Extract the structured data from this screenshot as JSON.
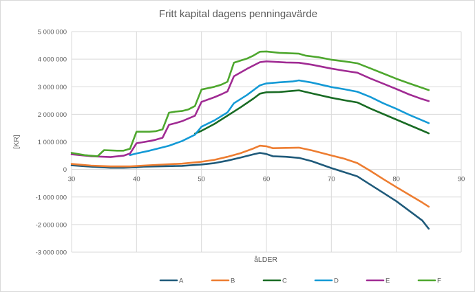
{
  "chart_data": {
    "type": "line",
    "title": "Fritt kapital dagens penningavärde",
    "xlabel": "åLDER",
    "ylabel": "[KR]",
    "xlim": [
      30,
      90
    ],
    "ylim": [
      -3000000,
      5000000
    ],
    "x_ticks": [
      30,
      40,
      50,
      60,
      70,
      80,
      90
    ],
    "x_tick_labels": [
      "30",
      "40",
      "50",
      "60",
      "70",
      "80",
      "90"
    ],
    "y_ticks": [
      -3000000,
      -2000000,
      -1000000,
      0,
      1000000,
      2000000,
      3000000,
      4000000,
      5000000
    ],
    "y_tick_labels": [
      "-3 000 000",
      "-2 000 000",
      "-1 000 000",
      "0",
      "1 000 000",
      "2 000 000",
      "3 000 000",
      "4 000 000",
      "5 000 000"
    ],
    "grid": "vertical and horizontal",
    "legend_position": "bottom",
    "series": [
      {
        "name": "A",
        "color": "#1f5a7a",
        "points": [
          [
            30,
            150000
          ],
          [
            33,
            100000
          ],
          [
            36,
            60000
          ],
          [
            38,
            60000
          ],
          [
            40,
            80000
          ],
          [
            41,
            100000
          ],
          [
            43,
            110000
          ],
          [
            45,
            120000
          ],
          [
            47,
            130000
          ],
          [
            50,
            180000
          ],
          [
            52,
            230000
          ],
          [
            54,
            320000
          ],
          [
            56,
            430000
          ],
          [
            58,
            550000
          ],
          [
            59,
            600000
          ],
          [
            60,
            560000
          ],
          [
            61,
            480000
          ],
          [
            63,
            460000
          ],
          [
            65,
            420000
          ],
          [
            67,
            300000
          ],
          [
            70,
            50000
          ],
          [
            72,
            -100000
          ],
          [
            74,
            -250000
          ],
          [
            76,
            -550000
          ],
          [
            78,
            -850000
          ],
          [
            80,
            -1150000
          ],
          [
            82,
            -1500000
          ],
          [
            84,
            -1850000
          ],
          [
            85,
            -2150000
          ]
        ]
      },
      {
        "name": "B",
        "color": "#ed7d31",
        "points": [
          [
            30,
            200000
          ],
          [
            33,
            140000
          ],
          [
            36,
            110000
          ],
          [
            39,
            110000
          ],
          [
            41,
            140000
          ],
          [
            45,
            190000
          ],
          [
            47,
            210000
          ],
          [
            50,
            280000
          ],
          [
            52,
            350000
          ],
          [
            54,
            460000
          ],
          [
            56,
            590000
          ],
          [
            58,
            760000
          ],
          [
            59,
            860000
          ],
          [
            60,
            840000
          ],
          [
            61,
            770000
          ],
          [
            63,
            780000
          ],
          [
            65,
            790000
          ],
          [
            67,
            690000
          ],
          [
            70,
            510000
          ],
          [
            72,
            390000
          ],
          [
            74,
            230000
          ],
          [
            76,
            -50000
          ],
          [
            78,
            -350000
          ],
          [
            80,
            -640000
          ],
          [
            82,
            -920000
          ],
          [
            84,
            -1200000
          ],
          [
            85,
            -1350000
          ]
        ]
      },
      {
        "name": "C",
        "color": "#196b24",
        "points": [
          [
            49,
            1300000
          ],
          [
            50,
            1400000
          ],
          [
            52,
            1650000
          ],
          [
            54,
            1950000
          ],
          [
            56,
            2250000
          ],
          [
            58,
            2570000
          ],
          [
            59,
            2750000
          ],
          [
            60,
            2800000
          ],
          [
            62,
            2810000
          ],
          [
            64,
            2850000
          ],
          [
            65,
            2870000
          ],
          [
            67,
            2760000
          ],
          [
            70,
            2600000
          ],
          [
            72,
            2510000
          ],
          [
            74,
            2430000
          ],
          [
            76,
            2210000
          ],
          [
            78,
            2010000
          ],
          [
            80,
            1810000
          ],
          [
            82,
            1610000
          ],
          [
            84,
            1410000
          ],
          [
            85,
            1310000
          ]
        ]
      },
      {
        "name": "D",
        "color": "#149ad6",
        "points": [
          [
            39,
            520000
          ],
          [
            40,
            580000
          ],
          [
            42,
            680000
          ],
          [
            44,
            800000
          ],
          [
            45,
            860000
          ],
          [
            47,
            1030000
          ],
          [
            49,
            1260000
          ],
          [
            50,
            1550000
          ],
          [
            52,
            1780000
          ],
          [
            54,
            2070000
          ],
          [
            55,
            2400000
          ],
          [
            57,
            2700000
          ],
          [
            59,
            3050000
          ],
          [
            60,
            3120000
          ],
          [
            62,
            3160000
          ],
          [
            64,
            3190000
          ],
          [
            65,
            3230000
          ],
          [
            67,
            3150000
          ],
          [
            70,
            2990000
          ],
          [
            72,
            2910000
          ],
          [
            74,
            2820000
          ],
          [
            76,
            2630000
          ],
          [
            78,
            2400000
          ],
          [
            80,
            2200000
          ],
          [
            82,
            1980000
          ],
          [
            84,
            1780000
          ],
          [
            85,
            1680000
          ]
        ]
      },
      {
        "name": "E",
        "color": "#a02b93",
        "points": [
          [
            30,
            550000
          ],
          [
            33,
            480000
          ],
          [
            36,
            450000
          ],
          [
            38,
            500000
          ],
          [
            39,
            580000
          ],
          [
            40,
            950000
          ],
          [
            42,
            1030000
          ],
          [
            43,
            1080000
          ],
          [
            44,
            1150000
          ],
          [
            45,
            1620000
          ],
          [
            46,
            1680000
          ],
          [
            47,
            1750000
          ],
          [
            48,
            1850000
          ],
          [
            49,
            1950000
          ],
          [
            50,
            2450000
          ],
          [
            52,
            2620000
          ],
          [
            53,
            2720000
          ],
          [
            54,
            2830000
          ],
          [
            55,
            3380000
          ],
          [
            57,
            3650000
          ],
          [
            59,
            3890000
          ],
          [
            60,
            3920000
          ],
          [
            63,
            3880000
          ],
          [
            65,
            3870000
          ],
          [
            67,
            3800000
          ],
          [
            70,
            3660000
          ],
          [
            72,
            3580000
          ],
          [
            74,
            3510000
          ],
          [
            76,
            3300000
          ],
          [
            78,
            3110000
          ],
          [
            80,
            2920000
          ],
          [
            82,
            2720000
          ],
          [
            84,
            2550000
          ],
          [
            85,
            2480000
          ]
        ]
      },
      {
        "name": "F",
        "color": "#4ea72e",
        "points": [
          [
            30,
            600000
          ],
          [
            32,
            520000
          ],
          [
            34,
            480000
          ],
          [
            35,
            700000
          ],
          [
            37,
            680000
          ],
          [
            38,
            680000
          ],
          [
            39,
            750000
          ],
          [
            40,
            1370000
          ],
          [
            42,
            1370000
          ],
          [
            43,
            1390000
          ],
          [
            44,
            1450000
          ],
          [
            45,
            2060000
          ],
          [
            46,
            2100000
          ],
          [
            47,
            2120000
          ],
          [
            48,
            2180000
          ],
          [
            49,
            2300000
          ],
          [
            50,
            2900000
          ],
          [
            52,
            3000000
          ],
          [
            53,
            3070000
          ],
          [
            54,
            3180000
          ],
          [
            55,
            3870000
          ],
          [
            57,
            4020000
          ],
          [
            58,
            4130000
          ],
          [
            59,
            4270000
          ],
          [
            60,
            4280000
          ],
          [
            62,
            4230000
          ],
          [
            64,
            4210000
          ],
          [
            65,
            4200000
          ],
          [
            66,
            4130000
          ],
          [
            68,
            4070000
          ],
          [
            70,
            3980000
          ],
          [
            72,
            3920000
          ],
          [
            74,
            3850000
          ],
          [
            76,
            3670000
          ],
          [
            78,
            3480000
          ],
          [
            80,
            3290000
          ],
          [
            82,
            3120000
          ],
          [
            84,
            2960000
          ],
          [
            85,
            2880000
          ]
        ]
      }
    ]
  }
}
